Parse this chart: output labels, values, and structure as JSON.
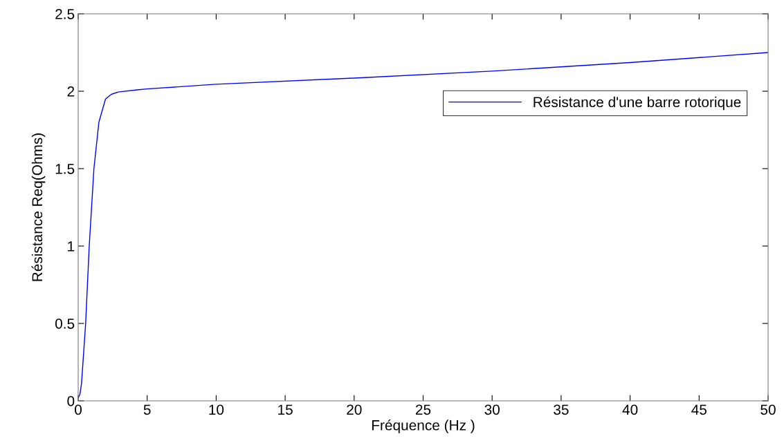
{
  "chart_data": {
    "type": "line",
    "xlabel": "Fréquence (Hz )",
    "ylabel": "Résistance Req(Ohms)",
    "series": [
      {
        "name": "Résistance d'une barre rotorique",
        "color": "#0000ff",
        "x": [
          0,
          0.12,
          0.24,
          0.54,
          0.8,
          1.14,
          1.5,
          1.98,
          2.4,
          2.9,
          4.4,
          5,
          10,
          20,
          30,
          40,
          50
        ],
        "values": [
          0.02,
          0.04,
          0.11,
          0.5,
          1.0,
          1.5,
          1.8,
          1.95,
          1.98,
          1.995,
          2.01,
          2.015,
          2.045,
          2.085,
          2.13,
          2.185,
          2.25
        ]
      }
    ],
    "xlim": [
      0,
      50
    ],
    "xticks": [
      0,
      5,
      10,
      15,
      20,
      25,
      30,
      35,
      40,
      45,
      50
    ],
    "ylim": [
      0,
      2.5
    ],
    "yticks": [
      0,
      0.5,
      1,
      1.5,
      2,
      2.5
    ],
    "grid": false,
    "legend": "top right",
    "marker": "none",
    "line_style": "solid"
  }
}
